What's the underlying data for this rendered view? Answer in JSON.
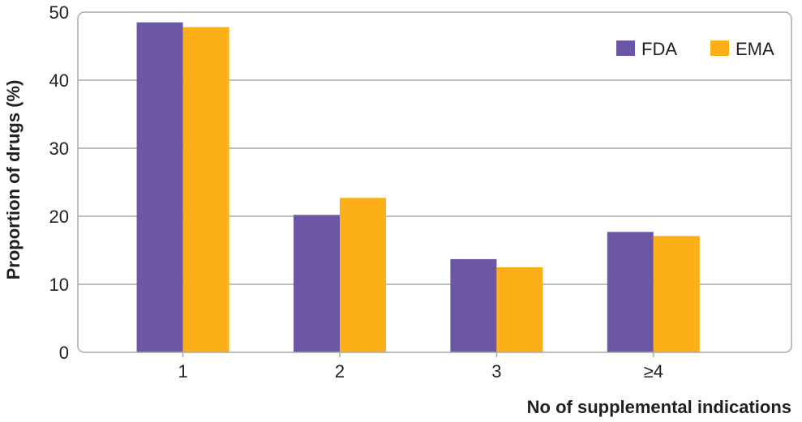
{
  "chart_data": {
    "type": "bar",
    "title": "",
    "xlabel": "No of supplemental indications",
    "ylabel": "Proportion of drugs (%)",
    "categories": [
      "1",
      "2",
      "3",
      "≥4"
    ],
    "series": [
      {
        "name": "FDA",
        "color": "#6b57a6",
        "values": [
          48.5,
          20.2,
          13.7,
          17.7
        ]
      },
      {
        "name": "EMA",
        "color": "#fcaf17",
        "values": [
          47.8,
          22.7,
          12.5,
          17.1
        ]
      }
    ],
    "ylim": [
      0,
      50
    ],
    "yticks": [
      0,
      10,
      20,
      30,
      40,
      50
    ],
    "grid": true,
    "legend_position": "top-right"
  }
}
